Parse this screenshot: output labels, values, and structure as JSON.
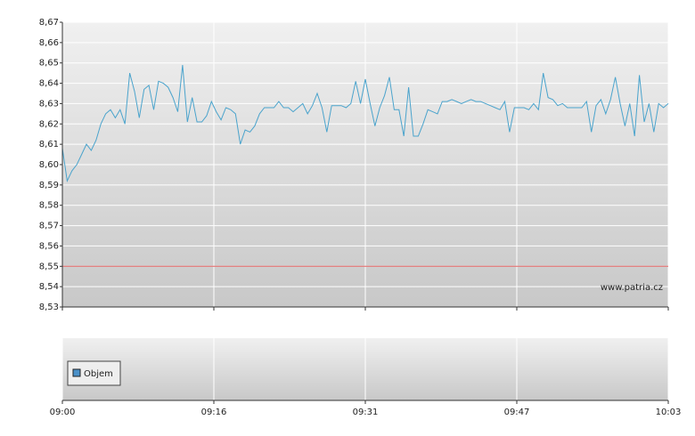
{
  "chart_data": {
    "type": "line",
    "watermark": "www.patria.cz",
    "volume_legend": "Objem",
    "volume_color": "#4a90c8",
    "color": "#4aa3cc",
    "values": [
      8.608,
      8.592,
      8.597,
      8.6,
      8.605,
      8.61,
      8.607,
      8.612,
      8.62,
      8.625,
      8.627,
      8.623,
      8.627,
      8.62,
      8.645,
      8.636,
      8.623,
      8.637,
      8.639,
      8.627,
      8.641,
      8.64,
      8.638,
      8.633,
      8.626,
      8.649,
      8.621,
      8.633,
      8.621,
      8.621,
      8.624,
      8.631,
      8.626,
      8.622,
      8.628,
      8.627,
      8.625,
      8.61,
      8.617,
      8.616,
      8.619,
      8.625,
      8.628,
      8.628,
      8.628,
      8.631,
      8.628,
      8.628,
      8.626,
      8.628,
      8.63,
      8.625,
      8.629,
      8.635,
      8.628,
      8.616,
      8.629,
      8.629,
      8.629,
      8.628,
      8.63,
      8.641,
      8.63,
      8.642,
      8.63,
      8.619,
      8.628,
      8.634,
      8.643,
      8.627,
      8.627,
      8.614,
      8.638,
      8.614,
      8.614,
      8.62,
      8.627,
      8.626,
      8.625,
      8.631,
      8.631,
      8.632,
      8.631,
      8.63,
      8.631,
      8.632,
      8.631,
      8.631,
      8.63,
      8.629,
      8.628,
      8.627,
      8.631,
      8.616,
      8.628,
      8.628,
      8.628,
      8.627,
      8.63,
      8.627,
      8.645,
      8.633,
      8.632,
      8.629,
      8.63,
      8.628,
      8.628,
      8.628,
      8.628,
      8.631,
      8.616,
      8.629,
      8.632,
      8.625,
      8.632,
      8.643,
      8.63,
      8.619,
      8.63,
      8.614,
      8.644,
      8.621,
      8.63,
      8.616,
      8.63,
      8.628,
      8.63
    ],
    "reference_line": {
      "value": 8.55,
      "color": "#e06060"
    },
    "ylim": [
      8.53,
      8.67
    ],
    "yticks": [
      {
        "value": 8.53,
        "label": "8,53"
      },
      {
        "value": 8.54,
        "label": "8,54"
      },
      {
        "value": 8.55,
        "label": "8,55"
      },
      {
        "value": 8.56,
        "label": "8,56"
      },
      {
        "value": 8.57,
        "label": "8,57"
      },
      {
        "value": 8.58,
        "label": "8,58"
      },
      {
        "value": 8.59,
        "label": "8,59"
      },
      {
        "value": 8.6,
        "label": "8,60"
      },
      {
        "value": 8.61,
        "label": "8,61"
      },
      {
        "value": 8.62,
        "label": "8,62"
      },
      {
        "value": 8.63,
        "label": "8,63"
      },
      {
        "value": 8.64,
        "label": "8,64"
      },
      {
        "value": 8.65,
        "label": "8,65"
      },
      {
        "value": 8.66,
        "label": "8,66"
      },
      {
        "value": 8.67,
        "label": "8,67"
      }
    ],
    "xlim": [
      0,
      63
    ],
    "xticks": [
      {
        "value": 0,
        "label": "09:00"
      },
      {
        "value": 15.75,
        "label": "09:16"
      },
      {
        "value": 31.5,
        "label": "09:31"
      },
      {
        "value": 47.25,
        "label": "09:47"
      },
      {
        "value": 63,
        "label": "10:03"
      }
    ],
    "grid": true
  }
}
